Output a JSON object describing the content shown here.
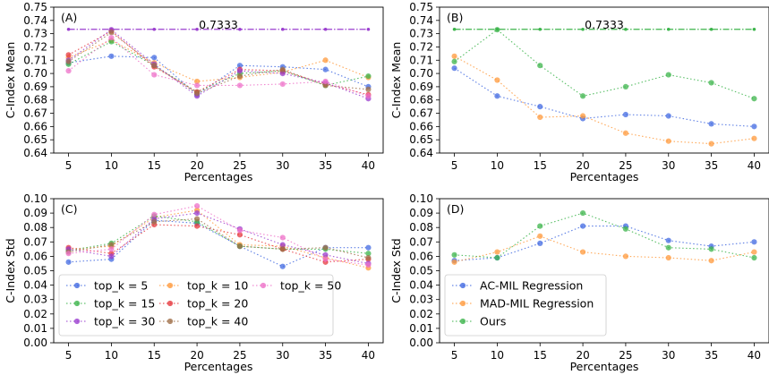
{
  "chart_data": [
    {
      "type": "line",
      "panel_label": "(A)",
      "xlabel": "Percentages",
      "ylabel": "C-Index Mean",
      "x": [
        5,
        10,
        15,
        20,
        25,
        30,
        35,
        40
      ],
      "ylim": [
        0.64,
        0.75
      ],
      "yticks": [
        "0.64",
        "0.65",
        "0.66",
        "0.67",
        "0.68",
        "0.69",
        "0.70",
        "0.71",
        "0.72",
        "0.73",
        "0.74",
        "0.75"
      ],
      "reference_line": {
        "value": 0.7333,
        "label": "0.7333",
        "color": "#9b3fcf"
      },
      "series": [
        {
          "name": "top_k = 5",
          "color": "#4169e1",
          "values": [
            0.708,
            0.713,
            0.712,
            0.684,
            0.706,
            0.705,
            0.703,
            0.69
          ]
        },
        {
          "name": "top_k = 10",
          "color": "#ff9a3c",
          "values": [
            0.712,
            0.725,
            0.708,
            0.694,
            0.697,
            0.701,
            0.71,
            0.697
          ]
        },
        {
          "name": "top_k = 15",
          "color": "#3cb44b",
          "values": [
            0.707,
            0.724,
            0.706,
            0.686,
            0.7,
            0.702,
            0.691,
            0.698
          ]
        },
        {
          "name": "top_k = 20",
          "color": "#e6393f",
          "values": [
            0.714,
            0.732,
            0.705,
            0.686,
            0.703,
            0.702,
            0.692,
            0.684
          ]
        },
        {
          "name": "top_k = 30",
          "color": "#9b3fcf",
          "values": [
            0.71,
            0.733,
            0.707,
            0.683,
            0.702,
            0.7,
            0.693,
            0.681
          ]
        },
        {
          "name": "top_k = 40",
          "color": "#a0704a",
          "values": [
            0.709,
            0.731,
            0.706,
            0.685,
            0.698,
            0.703,
            0.691,
            0.688
          ]
        },
        {
          "name": "top_k = 50",
          "color": "#ee70c8",
          "values": [
            0.702,
            0.727,
            0.699,
            0.691,
            0.691,
            0.692,
            0.694,
            0.683
          ]
        }
      ]
    },
    {
      "type": "line",
      "panel_label": "(B)",
      "xlabel": "Percentages",
      "ylabel": "C-Index Mean",
      "x": [
        5,
        10,
        15,
        20,
        25,
        30,
        35,
        40
      ],
      "ylim": [
        0.64,
        0.75
      ],
      "yticks": [
        "0.64",
        "0.65",
        "0.66",
        "0.67",
        "0.68",
        "0.69",
        "0.70",
        "0.71",
        "0.72",
        "0.73",
        "0.74",
        "0.75"
      ],
      "reference_line": {
        "value": 0.7333,
        "label": "0.7333",
        "color": "#3cb44b"
      },
      "series": [
        {
          "name": "AC-MIL Regression",
          "color": "#4169e1",
          "values": [
            0.704,
            0.683,
            0.675,
            0.666,
            0.669,
            0.668,
            0.662,
            0.66
          ]
        },
        {
          "name": "MAD-MIL Regression",
          "color": "#ff9a3c",
          "values": [
            0.713,
            0.695,
            0.667,
            0.668,
            0.655,
            0.649,
            0.647,
            0.651
          ]
        },
        {
          "name": "Ours",
          "color": "#3cb44b",
          "values": [
            0.709,
            0.733,
            0.706,
            0.683,
            0.69,
            0.699,
            0.693,
            0.681
          ]
        }
      ]
    },
    {
      "type": "line",
      "panel_label": "(C)",
      "xlabel": "Percentages",
      "ylabel": "C-Index Std",
      "x": [
        5,
        10,
        15,
        20,
        25,
        30,
        35,
        40
      ],
      "ylim": [
        0.0,
        0.1
      ],
      "yticks": [
        "0.00",
        "0.01",
        "0.02",
        "0.03",
        "0.04",
        "0.05",
        "0.06",
        "0.07",
        "0.08",
        "0.09",
        "0.10"
      ],
      "legend_position": "lower-left",
      "series": [
        {
          "name": "top_k = 5",
          "color": "#4169e1",
          "values": [
            0.056,
            0.058,
            0.085,
            0.083,
            0.067,
            0.053,
            0.066,
            0.066
          ]
        },
        {
          "name": "top_k = 10",
          "color": "#ff9a3c",
          "values": [
            0.065,
            0.067,
            0.087,
            0.092,
            0.068,
            0.067,
            0.059,
            0.052
          ]
        },
        {
          "name": "top_k = 15",
          "color": "#3cb44b",
          "values": [
            0.064,
            0.069,
            0.088,
            0.084,
            0.067,
            0.065,
            0.065,
            0.062
          ]
        },
        {
          "name": "top_k = 20",
          "color": "#e6393f",
          "values": [
            0.066,
            0.062,
            0.082,
            0.081,
            0.075,
            0.065,
            0.056,
            0.058
          ]
        },
        {
          "name": "top_k = 30",
          "color": "#9b3fcf",
          "values": [
            0.065,
            0.06,
            0.086,
            0.09,
            0.079,
            0.068,
            0.061,
            0.055
          ]
        },
        {
          "name": "top_k = 40",
          "color": "#a0704a",
          "values": [
            0.063,
            0.068,
            0.084,
            0.086,
            0.067,
            0.065,
            0.066,
            0.059
          ]
        },
        {
          "name": "top_k = 50",
          "color": "#ee70c8",
          "values": [
            0.062,
            0.065,
            0.089,
            0.095,
            0.078,
            0.073,
            0.058,
            0.054
          ]
        }
      ]
    },
    {
      "type": "line",
      "panel_label": "(D)",
      "xlabel": "Percentages",
      "ylabel": "C-Index Std",
      "x": [
        5,
        10,
        15,
        20,
        25,
        30,
        35,
        40
      ],
      "ylim": [
        0.0,
        0.1
      ],
      "yticks": [
        "0.00",
        "0.01",
        "0.02",
        "0.03",
        "0.04",
        "0.05",
        "0.06",
        "0.07",
        "0.08",
        "0.09",
        "0.10"
      ],
      "legend_position": "lower-left",
      "series": [
        {
          "name": "AC-MIL Regression",
          "color": "#4169e1",
          "values": [
            0.057,
            0.059,
            0.069,
            0.081,
            0.081,
            0.071,
            0.067,
            0.07
          ]
        },
        {
          "name": "MAD-MIL Regression",
          "color": "#ff9a3c",
          "values": [
            0.056,
            0.063,
            0.074,
            0.063,
            0.06,
            0.059,
            0.057,
            0.063
          ]
        },
        {
          "name": "Ours",
          "color": "#3cb44b",
          "values": [
            0.061,
            0.059,
            0.081,
            0.09,
            0.079,
            0.066,
            0.065,
            0.059
          ]
        }
      ]
    }
  ]
}
